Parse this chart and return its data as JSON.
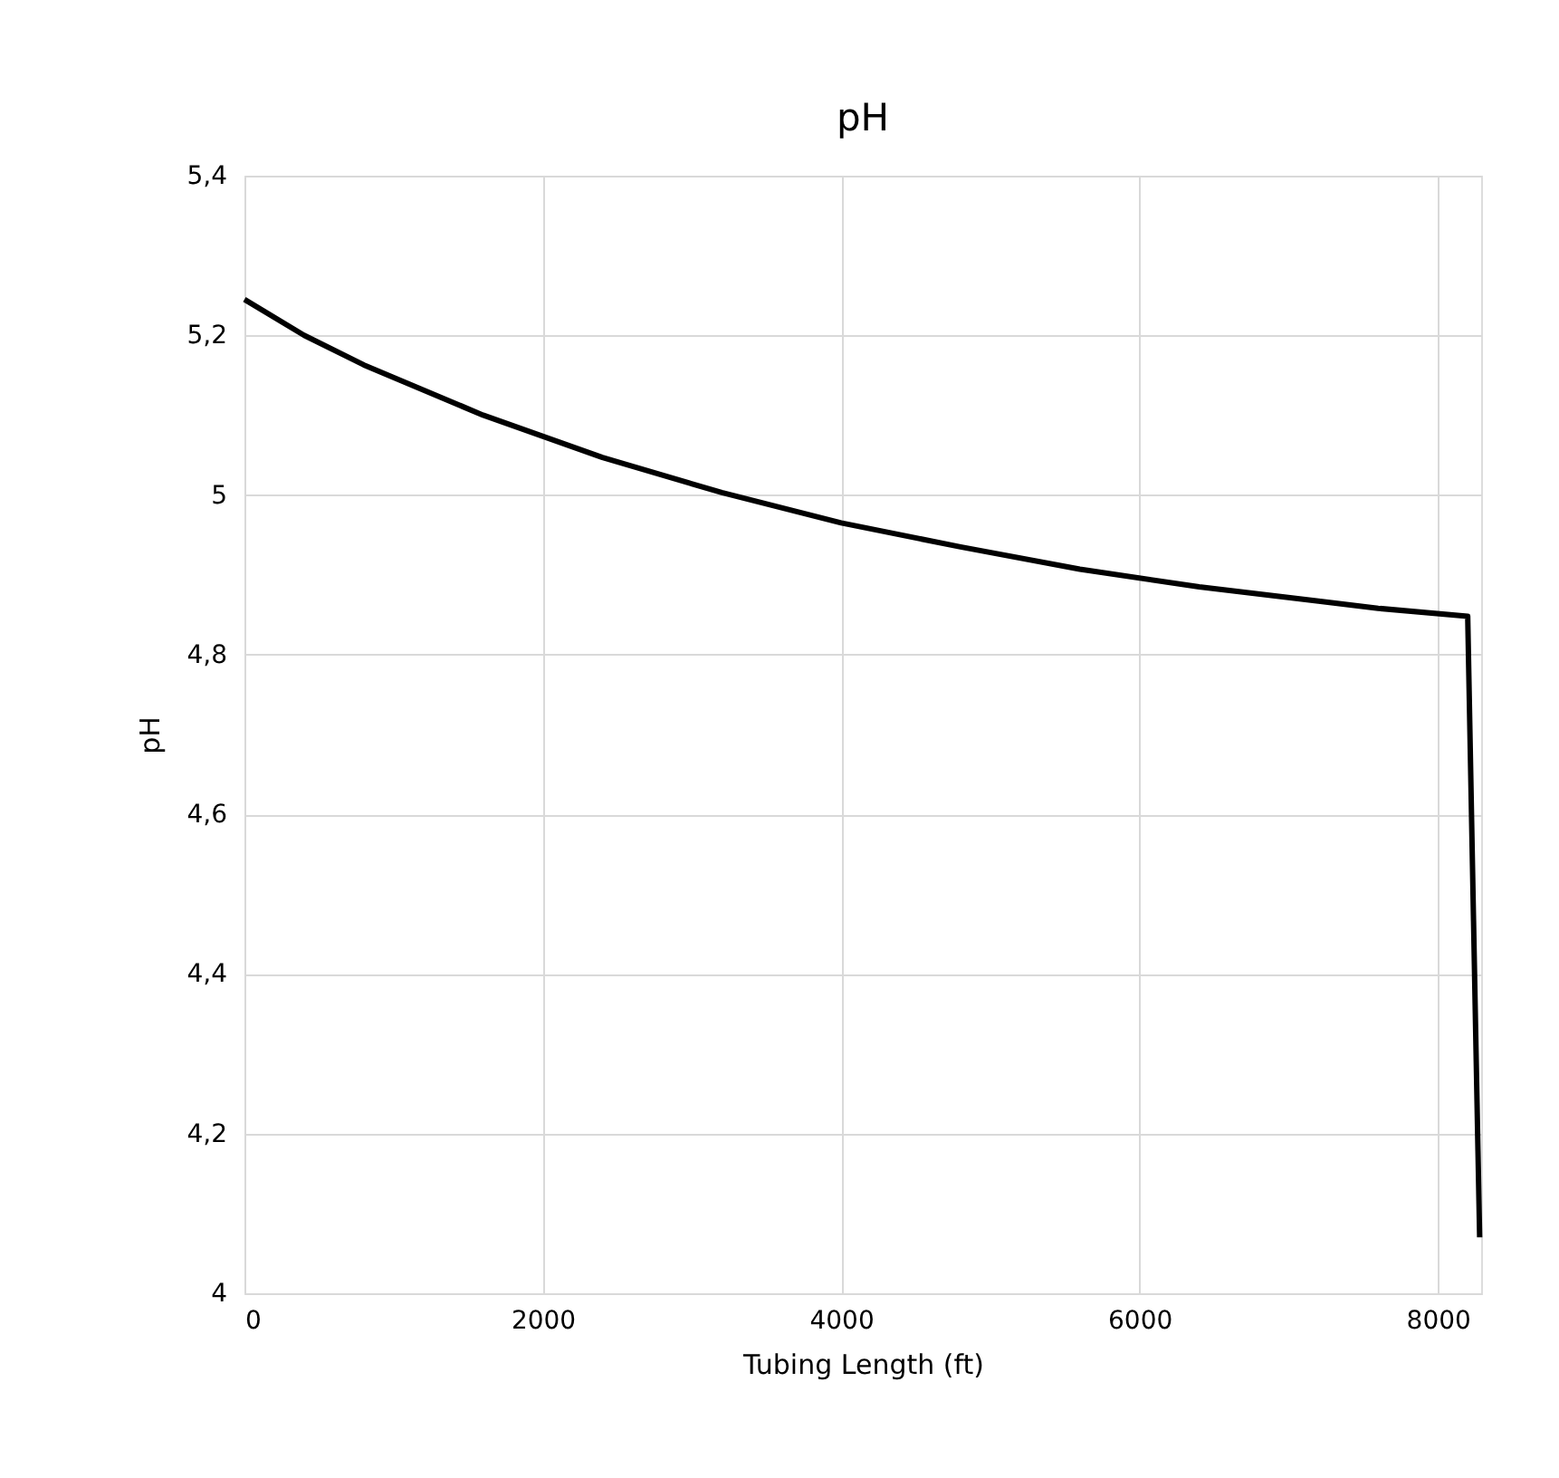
{
  "chart_data": {
    "type": "line",
    "title": "pH",
    "xlabel": "Tubing Length (ft)",
    "ylabel": "pH",
    "x": [
      0,
      400,
      800,
      1600,
      2400,
      3200,
      4000,
      4800,
      5600,
      6400,
      7200,
      7600,
      8200,
      8250,
      8280
    ],
    "series": [
      {
        "color": "#000000",
        "values": [
          5.245,
          5.2,
          5.163,
          5.1,
          5.047,
          5.003,
          4.965,
          4.935,
          4.907,
          4.885,
          4.867,
          4.858,
          4.848,
          4.36,
          4.07
        ]
      }
    ],
    "xlim": [
      0,
      8290
    ],
    "xticks": [
      0,
      2000,
      4000,
      6000,
      8000
    ],
    "ylim": [
      4,
      5.4
    ],
    "yticks": [
      4,
      {
        "value": 4.2,
        "label": "4,2"
      },
      {
        "value": 4.4,
        "label": "4,4"
      },
      {
        "value": 4.6,
        "label": "4,6"
      },
      {
        "value": 4.8,
        "label": "4,8"
      },
      5,
      {
        "value": 5.2,
        "label": "5,2"
      },
      {
        "value": 5.4,
        "label": "5,4"
      }
    ],
    "grid": true,
    "marker": "none",
    "line_style": "solid"
  }
}
